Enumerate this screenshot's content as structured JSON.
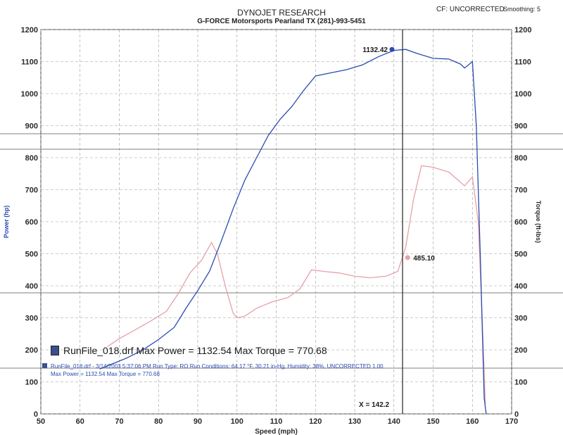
{
  "header": {
    "title": "DYNOJET RESEARCH",
    "subtitle": "G-FORCE Motorsports Pearland TX (281)-993-5451",
    "cf_label": "CF: UNCORRECTED",
    "smoothing_label": "Smoothing: 5"
  },
  "legend": {
    "main_line": "RunFile_018.drf Max Power = 1132.54      Max Torque = 770.68",
    "detail_line1": "RunFile_018.drf - 3/14/2003 5:37:06 PM  Run Type: RO  Run Conditions: 64.17 °F, 30.21 in-Hg,  Humidity:  38%, UNCORRECTED  1.00",
    "detail_line2": "Max Power = 1132.54   Max Torque = 770.68"
  },
  "cursor": {
    "label": "X = 142.2",
    "power_label": "1132.42",
    "torque_label": "485.10"
  },
  "colors": {
    "power": "#2b4bb0",
    "torque": "#e7a0a8",
    "grid": "#9a9a9a",
    "axis_text": "#2a2a2a",
    "legend_blue": "#2b4bb0"
  },
  "chart_data": {
    "type": "line",
    "xlabel": "Speed (mph)",
    "ylabel_left": "Power (hp)",
    "ylabel_right": "Torque (ft-lbs)",
    "xlim": [
      50,
      170
    ],
    "ylim_left": [
      0,
      1200
    ],
    "ylim_right": [
      0,
      1200
    ],
    "x_ticks": [
      50,
      60,
      70,
      80,
      90,
      100,
      110,
      120,
      130,
      140,
      150,
      160,
      170
    ],
    "y_ticks": [
      0,
      100,
      200,
      300,
      400,
      500,
      600,
      700,
      800,
      900,
      1000,
      1100,
      1200
    ],
    "grid": true,
    "cursor_x": 142.2,
    "series": [
      {
        "name": "Power",
        "points": [
          [
            65,
            140
          ],
          [
            68,
            155
          ],
          [
            72,
            175
          ],
          [
            76,
            200
          ],
          [
            80,
            232
          ],
          [
            84,
            270
          ],
          [
            87,
            330
          ],
          [
            90,
            385
          ],
          [
            93,
            445
          ],
          [
            96,
            540
          ],
          [
            99,
            640
          ],
          [
            102,
            730
          ],
          [
            105,
            800
          ],
          [
            108,
            870
          ],
          [
            111,
            920
          ],
          [
            114,
            960
          ],
          [
            117,
            1010
          ],
          [
            120,
            1055
          ],
          [
            124,
            1065
          ],
          [
            128,
            1075
          ],
          [
            132,
            1090
          ],
          [
            136,
            1115
          ],
          [
            140,
            1135
          ],
          [
            143,
            1138
          ],
          [
            146,
            1125
          ],
          [
            150,
            1110
          ],
          [
            154,
            1108
          ],
          [
            157,
            1092
          ],
          [
            158,
            1080
          ],
          [
            159,
            1090
          ],
          [
            160,
            1100
          ],
          [
            161,
            900
          ],
          [
            162,
            500
          ],
          [
            163,
            50
          ],
          [
            163.5,
            0
          ]
        ]
      },
      {
        "name": "Torque",
        "points": [
          [
            67,
            210
          ],
          [
            70,
            235
          ],
          [
            74,
            262
          ],
          [
            78,
            290
          ],
          [
            82,
            320
          ],
          [
            85,
            375
          ],
          [
            88,
            440
          ],
          [
            91,
            480
          ],
          [
            93.5,
            535
          ],
          [
            95,
            500
          ],
          [
            97,
            400
          ],
          [
            99,
            315
          ],
          [
            100,
            300
          ],
          [
            102,
            305
          ],
          [
            105,
            330
          ],
          [
            109,
            350
          ],
          [
            113,
            363
          ],
          [
            116,
            390
          ],
          [
            119,
            450
          ],
          [
            122,
            445
          ],
          [
            126,
            440
          ],
          [
            130,
            430
          ],
          [
            134,
            425
          ],
          [
            138,
            430
          ],
          [
            141,
            445
          ],
          [
            143,
            520
          ],
          [
            145,
            670
          ],
          [
            147,
            775
          ],
          [
            150,
            770
          ],
          [
            154,
            755
          ],
          [
            158,
            712
          ],
          [
            160,
            740
          ],
          [
            161.5,
            600
          ],
          [
            162.5,
            300
          ],
          [
            163.3,
            30
          ]
        ]
      }
    ]
  }
}
